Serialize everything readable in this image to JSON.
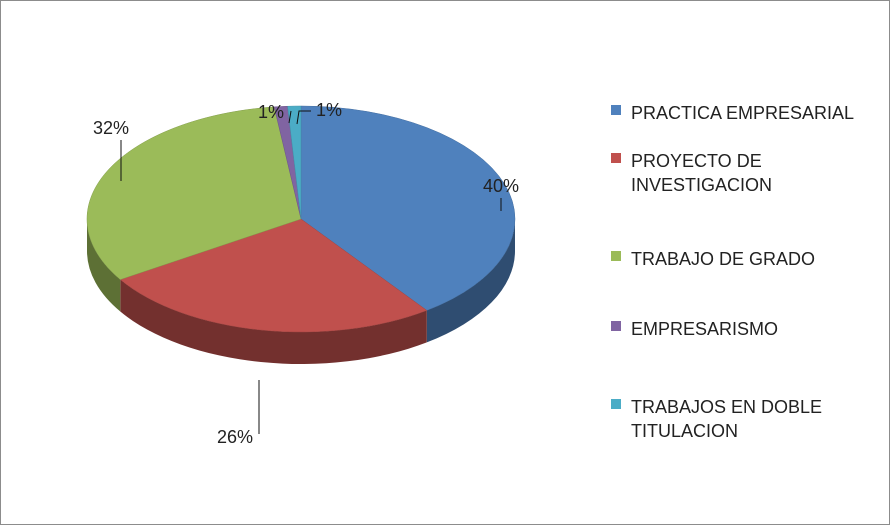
{
  "chart_data": {
    "type": "pie",
    "categories": [
      "PRACTICA EMPRESARIAL",
      "PROYECTO DE INVESTIGACION",
      "TRABAJO DE GRADO",
      "EMPRESARISMO",
      "TRABAJOS EN DOBLE TITULACION"
    ],
    "values": [
      40,
      26,
      32,
      1,
      1
    ],
    "value_labels": [
      "40%",
      "26%",
      "32%",
      "1%",
      "1%"
    ],
    "colors": [
      "#4f81bd",
      "#c0504d",
      "#9bbb59",
      "#8064a2",
      "#4bacc6"
    ],
    "legend": "right"
  }
}
